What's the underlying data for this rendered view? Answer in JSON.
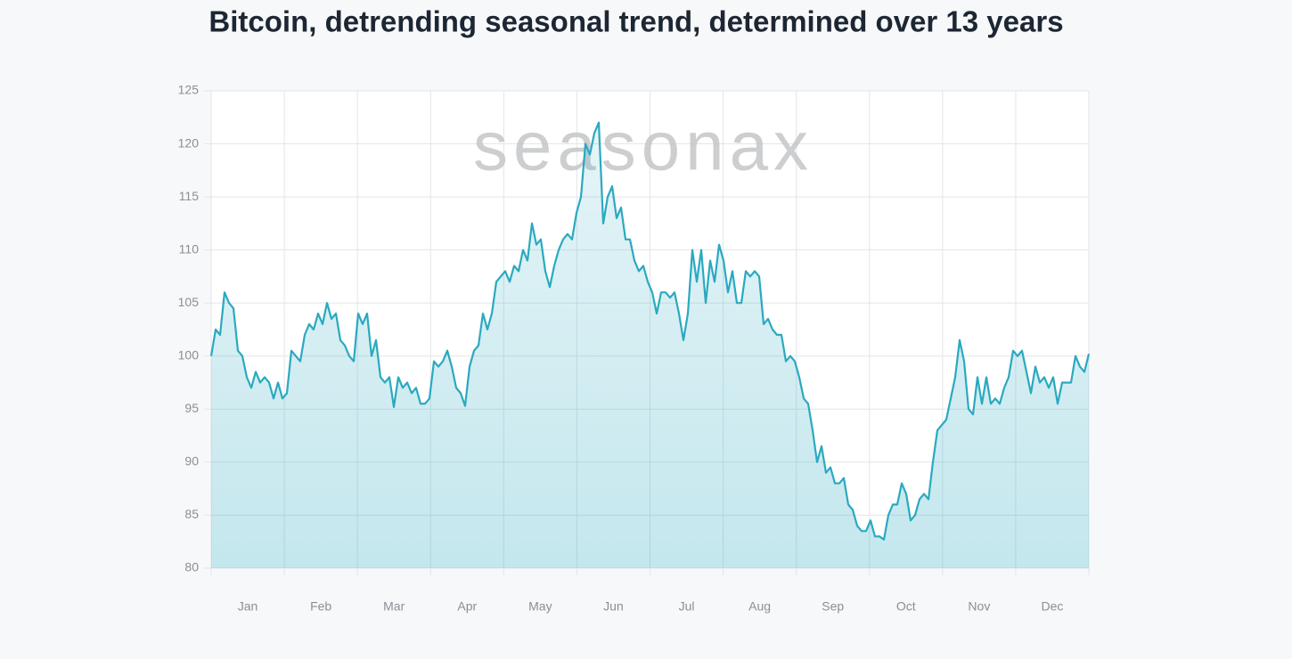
{
  "chart_data": {
    "type": "area",
    "title": "Bitcoin, detrending seasonal trend, determined over 13 years",
    "watermark": "seasonax",
    "months": [
      "Jan",
      "Feb",
      "Mar",
      "Apr",
      "May",
      "Jun",
      "Jul",
      "Aug",
      "Sep",
      "Oct",
      "Nov",
      "Dec"
    ],
    "color": "#2aa9c0",
    "ylim": [
      80,
      125
    ],
    "yticks": [
      80,
      85,
      90,
      95,
      100,
      105,
      110,
      115,
      120,
      125
    ],
    "grid": true,
    "values": [
      100,
      102.5,
      102,
      106,
      105,
      104.5,
      100.5,
      100,
      98,
      97,
      98.5,
      97.5,
      98,
      97.5,
      96,
      97.5,
      96,
      96.5,
      100.5,
      100,
      99.5,
      102,
      103,
      102.5,
      104,
      103,
      105,
      103.5,
      104,
      101.5,
      101,
      100,
      99.5,
      104,
      103,
      104,
      100,
      101.5,
      98,
      97.5,
      98,
      95.2,
      98,
      97,
      97.5,
      96.5,
      97,
      95.5,
      95.5,
      96,
      99.5,
      99,
      99.5,
      100.5,
      99,
      97,
      96.5,
      95.3,
      99,
      100.5,
      101,
      104,
      102.5,
      104,
      107,
      107.5,
      108,
      107,
      108.5,
      108,
      110,
      109,
      112.5,
      110.5,
      111,
      108,
      106.5,
      108.5,
      110,
      111,
      111.5,
      111,
      113.5,
      115,
      120,
      119,
      121,
      122,
      112.5,
      115,
      116,
      113,
      114,
      111,
      111,
      109,
      108,
      108.5,
      107,
      106,
      104,
      106,
      106,
      105.5,
      106,
      104,
      101.5,
      104,
      110,
      107,
      110,
      105,
      109,
      107,
      110.5,
      109,
      106,
      108,
      105,
      105,
      108,
      107.5,
      108,
      107.5,
      103,
      103.5,
      102.5,
      102,
      102,
      99.5,
      100,
      99.5,
      98,
      96,
      95.5,
      93,
      90,
      91.5,
      89,
      89.5,
      88,
      88,
      88.5,
      86,
      85.5,
      84,
      83.5,
      83.5,
      84.5,
      83,
      83,
      82.7,
      85,
      86,
      86,
      88,
      87,
      84.5,
      85,
      86.5,
      87,
      86.5,
      90,
      93,
      93.5,
      94,
      96,
      98,
      101.5,
      99.5,
      95,
      94.5,
      98,
      95.5,
      98,
      95.5,
      96,
      95.5,
      97,
      98,
      100.5,
      100,
      100.5,
      98.5,
      96.5,
      99,
      97.5,
      98,
      97,
      98,
      95.5,
      97.5,
      97.5,
      97.5,
      100,
      99,
      98.5,
      100.2
    ]
  }
}
